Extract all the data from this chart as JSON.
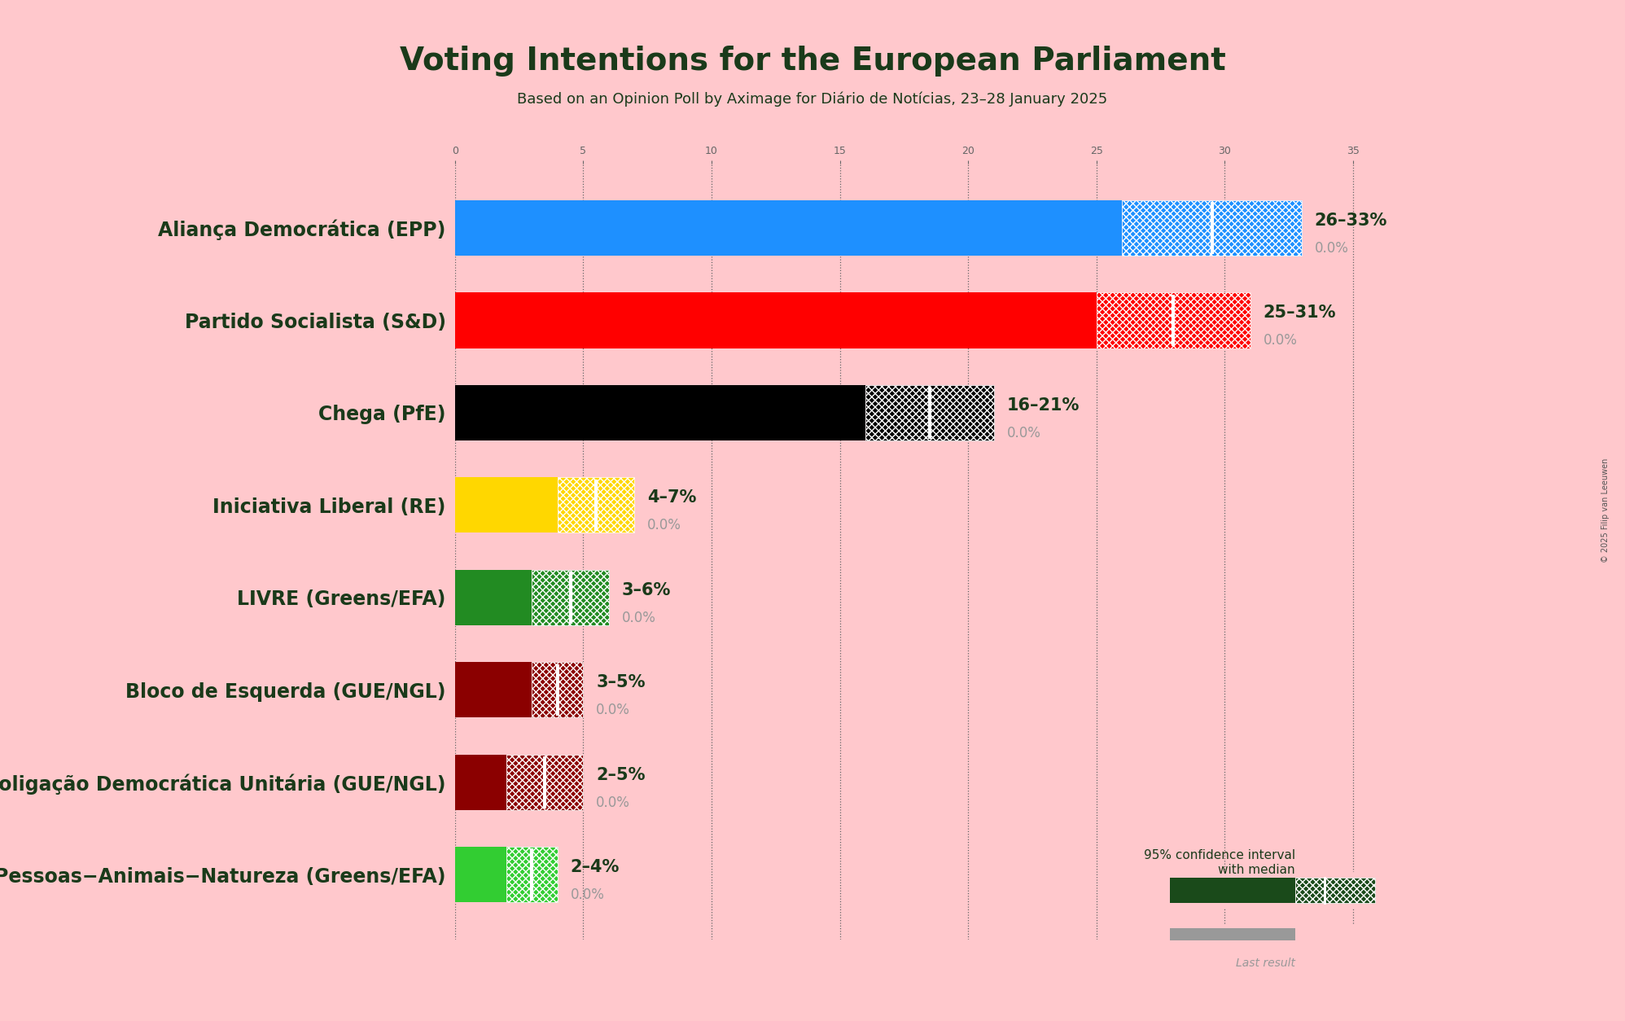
{
  "title": "Voting Intentions for the European Parliament",
  "subtitle": "Based on an Opinion Poll by Aximage for Diário de Notícias, 23–28 January 2025",
  "copyright": "© 2025 Filip van Leeuwen",
  "background_color": "#ffc8cc",
  "parties": [
    {
      "name": "Aliança Democrática (EPP)",
      "low": 26,
      "high": 33,
      "median": 29.5,
      "last": 0.0,
      "color": "#1e90ff",
      "hatch_color": "#1e90ff",
      "label": "26–33%"
    },
    {
      "name": "Partido Socialista (S&D)",
      "low": 25,
      "high": 31,
      "median": 28,
      "last": 0.0,
      "color": "#ff0000",
      "hatch_color": "#ff0000",
      "label": "25–31%"
    },
    {
      "name": "Chega (PfE)",
      "low": 16,
      "high": 21,
      "median": 18.5,
      "last": 0.0,
      "color": "#000000",
      "hatch_color": "#000000",
      "label": "16–21%"
    },
    {
      "name": "Iniciativa Liberal (RE)",
      "low": 4,
      "high": 7,
      "median": 5.5,
      "last": 0.0,
      "color": "#ffd700",
      "hatch_color": "#ffd700",
      "label": "4–7%"
    },
    {
      "name": "LIVRE (Greens/EFA)",
      "low": 3,
      "high": 6,
      "median": 4.5,
      "last": 0.0,
      "color": "#228b22",
      "hatch_color": "#228b22",
      "label": "3–6%"
    },
    {
      "name": "Bloco de Esquerda (GUE/NGL)",
      "low": 3,
      "high": 5,
      "median": 4.0,
      "last": 0.0,
      "color": "#8b0000",
      "hatch_color": "#8b0000",
      "label": "3–5%"
    },
    {
      "name": "Coligação Democrática Unitária (GUE/NGL)",
      "low": 2,
      "high": 5,
      "median": 3.5,
      "last": 0.0,
      "color": "#8b0000",
      "hatch_color": "#8b0000",
      "label": "2–5%"
    },
    {
      "name": "Pessoas−Animais−Natureza (Greens/EFA)",
      "low": 2,
      "high": 4,
      "median": 3.0,
      "last": 0.0,
      "color": "#32cd32",
      "hatch_color": "#32cd32",
      "label": "2–4%"
    }
  ],
  "xlim": [
    0,
    38
  ],
  "grid_ticks": [
    0,
    5,
    10,
    15,
    20,
    25,
    30,
    35
  ],
  "bar_height": 0.6,
  "title_fontsize": 28,
  "subtitle_fontsize": 13,
  "label_fontsize": 17,
  "range_fontsize": 15,
  "last_fontsize": 12,
  "dark_green": "#1a3a1a",
  "gray_color": "#999999"
}
